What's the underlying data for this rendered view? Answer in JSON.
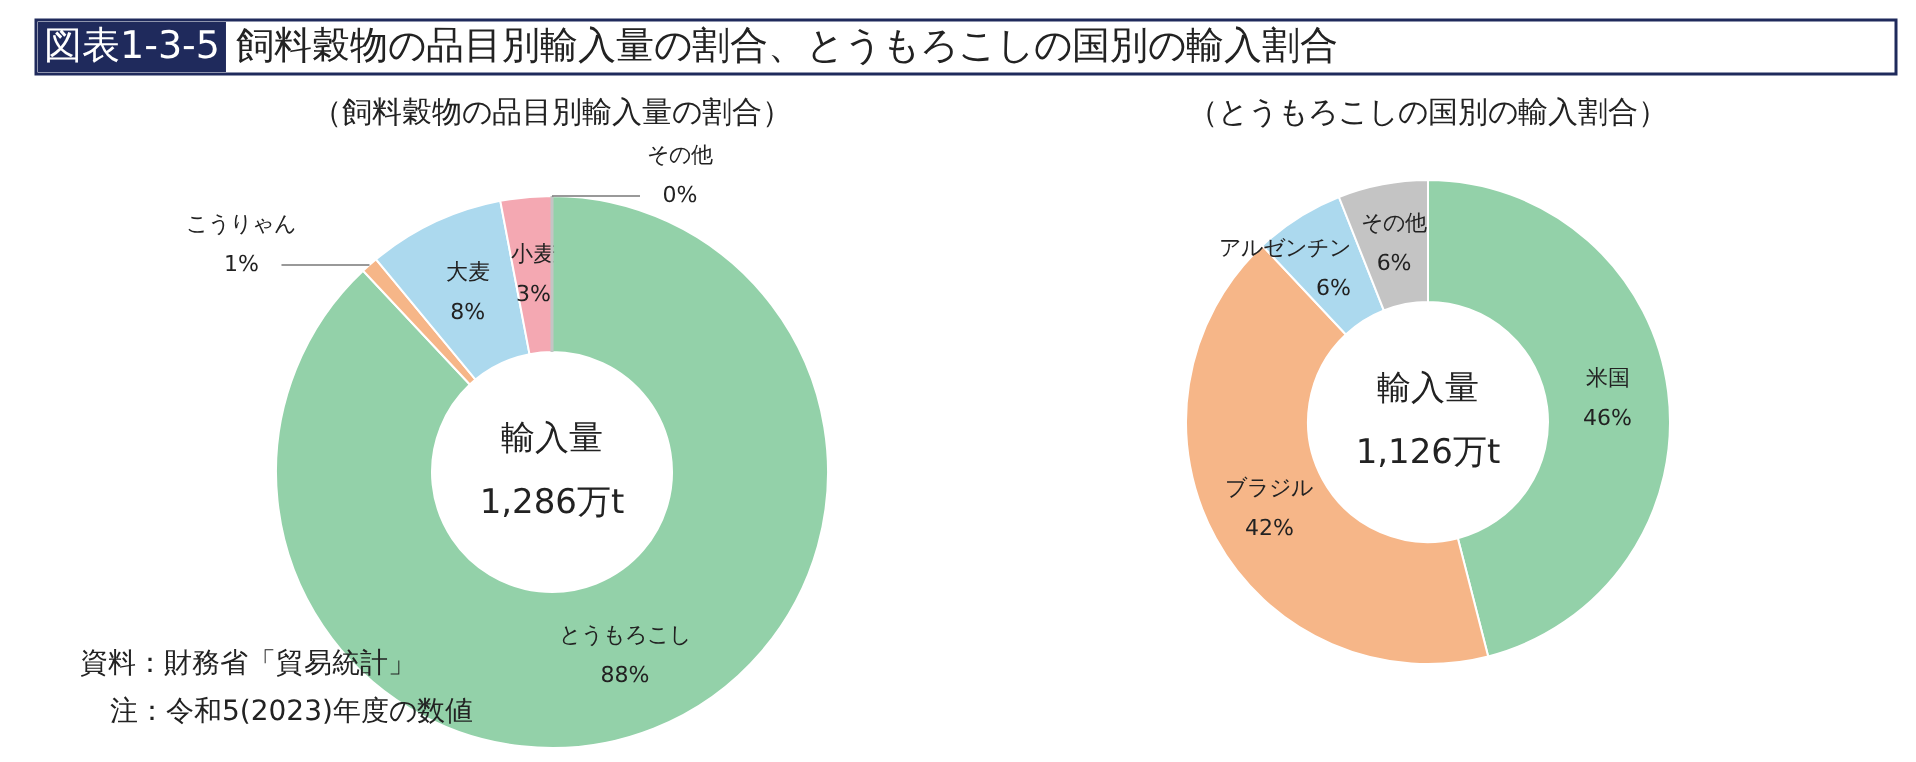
{
  "chart_data": [
    {
      "type": "donut",
      "title": "図表1-3-5 飼料穀物の品目別輸入量の割合、とうもろこしの国別の輸入割合",
      "subtitle": "（飼料穀物の品目別輸入量の割合）",
      "categories": [
        "とうもろこし",
        "こうりゃん",
        "大麦",
        "小麦",
        "その他"
      ],
      "values": [
        88,
        1,
        8,
        3,
        0
      ],
      "value_labels": [
        "88%",
        "1%",
        "8%",
        "3%",
        "0%"
      ],
      "colors": [
        "#93d1a9",
        "#f6b688",
        "#acd9ee",
        "#f4a8b2",
        "#c4c4c4"
      ],
      "annotations": [
        "輸入量",
        "1,286万t",
        "資料：財務省「貿易統計」",
        "注：令和5(2023)年度の数値"
      ]
    },
    {
      "type": "donut",
      "subtitle": "（とうもろこしの国別の輸入割合）",
      "categories": [
        "米国",
        "ブラジル",
        "アルゼンチン",
        "その他"
      ],
      "values": [
        46,
        42,
        6,
        6
      ],
      "value_labels": [
        "46%",
        "42%",
        "6%",
        "6%"
      ],
      "colors": [
        "#93d1a9",
        "#f6b688",
        "#acd9ee",
        "#c4c4c4"
      ],
      "annotations": [
        "輸入量",
        "1,126万t"
      ]
    }
  ]
}
